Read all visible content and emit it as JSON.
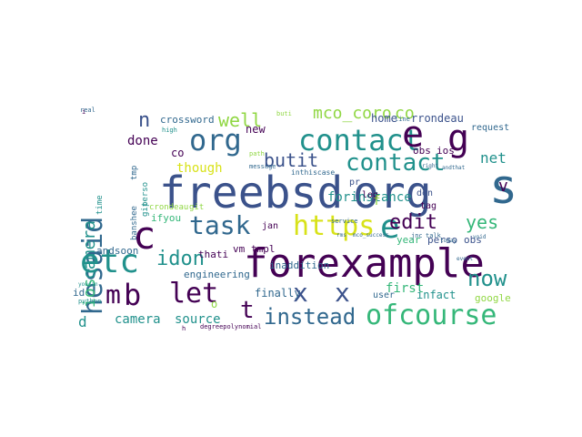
{
  "palette": {
    "purple": "#440154",
    "indigo": "#3b528b",
    "blue": "#31688e",
    "teal": "#21918c",
    "green": "#35b779",
    "lime": "#90d743",
    "yellow": "#d8e219",
    "background": "#ffffff"
  },
  "words": [
    "freebsd",
    "org",
    "s",
    "forexample",
    "org",
    "contact",
    "e",
    "g",
    "hesaid",
    "c",
    "etc",
    "task",
    "https",
    "e",
    "let",
    "b",
    "m",
    "ofcourse",
    "instead",
    "x",
    "x",
    "t",
    "contact",
    "ios",
    "camera",
    "edit",
    "now",
    "butit",
    "n",
    "well",
    "idon",
    "yes",
    "mco_coro",
    "co",
    "home",
    "rrondeau",
    "net",
    "camera",
    "source",
    "forinstance",
    "though",
    "done",
    "first",
    "infact",
    "finally",
    "crossword",
    "engineering",
    "obs",
    "ios",
    "inaddition",
    "ifyou",
    "year",
    "perso",
    "obs",
    "vm",
    "tmpl",
    "thati",
    "andsoon",
    "google",
    "user",
    "jan",
    "tag",
    "don",
    "log",
    "pr",
    "request",
    "v",
    "d",
    "id",
    "crondeau",
    "git",
    "banshee",
    "tmp",
    "git",
    "perso",
    "time",
    "co",
    "new",
    "path",
    "message",
    "inthiscase",
    "service",
    "rms",
    "mco_success",
    "jnc",
    "talk",
    "real",
    "high",
    "today",
    "line",
    "event",
    "void",
    "python",
    "youcan",
    "degreepolynomial",
    "h",
    "i",
    "o",
    "f",
    "buti",
    "andthat",
    "right"
  ]
}
